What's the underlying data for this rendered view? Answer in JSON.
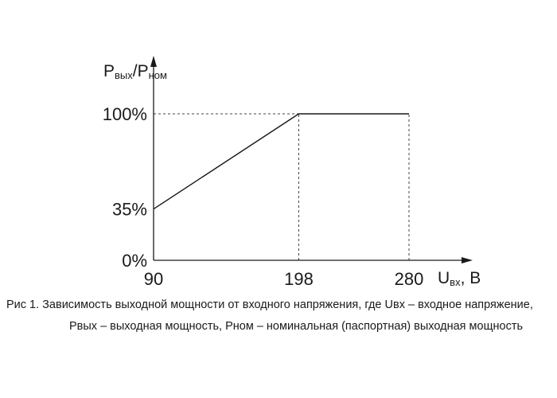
{
  "chart_data": {
    "type": "line",
    "ylabel": {
      "main": "P",
      "sub1": "вых",
      "sep": "/P",
      "sub2": "ном"
    },
    "xlabel": {
      "main": "U",
      "sub": "вх",
      "suffix": ", В"
    },
    "x_ticks": [
      "90",
      "198",
      "280"
    ],
    "y_ticks": [
      "0%",
      "35%",
      "100%"
    ],
    "xlim": [
      90,
      300
    ],
    "ylim": [
      0,
      100
    ],
    "series": [
      {
        "x": [
          90,
          198,
          280
        ],
        "y": [
          35,
          100,
          100
        ]
      }
    ],
    "reference_lines": [
      {
        "type": "horizontal",
        "y": 100,
        "from_x": 90,
        "to_x": 198
      },
      {
        "type": "vertical",
        "x": 198,
        "from_y": 0,
        "to_y": 100
      },
      {
        "type": "vertical",
        "x": 280,
        "from_y": 0,
        "to_y": 100
      }
    ]
  },
  "caption": {
    "line1": "Рис 1. Зависимость выходной мощности от входного напряжения, где Uвх – входное напряжение,",
    "line2": "Рвых – выходная мощность, Рном – номинальная (паспортная) выходная мощность"
  }
}
